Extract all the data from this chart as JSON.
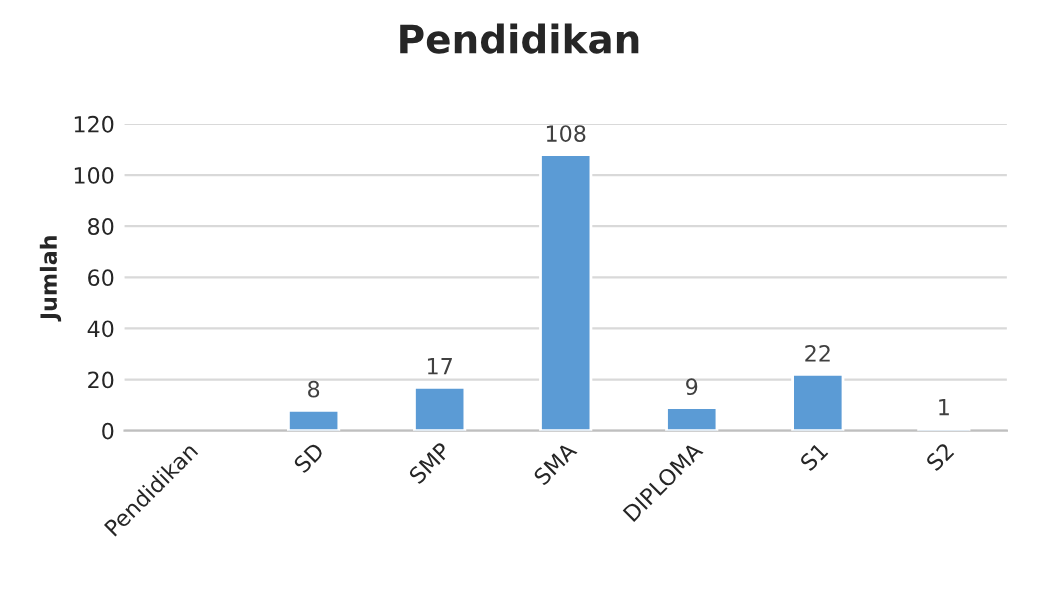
{
  "chart_data": {
    "type": "bar",
    "title": "Pendidikan",
    "ylabel": "Jumlah",
    "categories": [
      "Pendidikan",
      "SD",
      "SMP",
      "SMA",
      "DIPLOMA",
      "S1",
      "S2"
    ],
    "values": [
      null,
      8,
      17,
      108,
      9,
      22,
      1
    ],
    "color": "#5b9bd5",
    "ylim": [
      0,
      120
    ],
    "yticks": [
      0,
      20,
      40,
      60,
      80,
      100,
      120
    ],
    "grid": "y",
    "data_labels": true,
    "legend": false
  }
}
